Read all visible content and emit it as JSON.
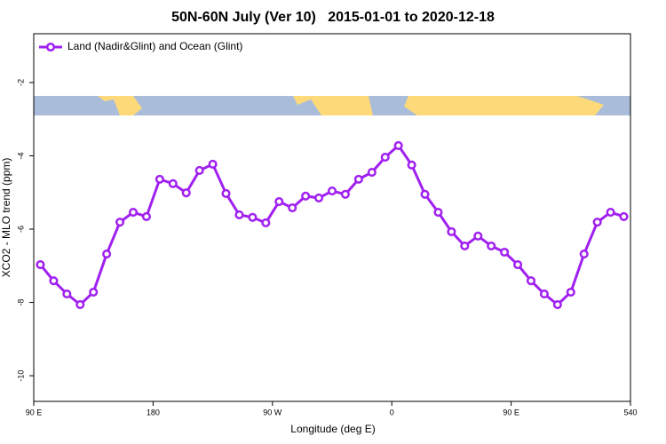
{
  "chart_data": {
    "type": "line",
    "title": "50N-60N July (Ver 10)   2015-01-01 to 2020-12-18",
    "x_label": "Longitude (deg E)",
    "y_label": "XCO2 - MLO trend (ppm)",
    "x": [
      95,
      105,
      115,
      125,
      135,
      145,
      155,
      165,
      175,
      185,
      195,
      205,
      215,
      225,
      235,
      245,
      255,
      265,
      275,
      285,
      295,
      305,
      315,
      325,
      335,
      345,
      355,
      365,
      375,
      385,
      395,
      405,
      415,
      425,
      435,
      445,
      455,
      465,
      475,
      485,
      495,
      505,
      515,
      525,
      535
    ],
    "series": [
      {
        "name": "Land (Nadir&Glint) and Ocean (Glint)",
        "color": "#a020f0",
        "values": [
          -6.97,
          -7.41,
          -7.77,
          -8.06,
          -7.72,
          -6.68,
          -5.81,
          -5.54,
          -5.66,
          -4.64,
          -4.76,
          -5.01,
          -4.4,
          -4.23,
          -5.03,
          -5.61,
          -5.68,
          -5.83,
          -5.25,
          -5.42,
          -5.1,
          -5.15,
          -4.96,
          -5.05,
          -4.64,
          -4.45,
          -4.04,
          -3.72,
          -4.25,
          -5.05,
          -5.54,
          -6.07,
          -6.46,
          -6.19,
          -6.46,
          -6.63,
          -6.97,
          -7.41,
          -7.77,
          -8.06,
          -7.72,
          -6.68,
          -5.81,
          -5.54,
          -5.66
        ]
      }
    ],
    "xlim": [
      90,
      540
    ],
    "xticks": [
      {
        "value": 90,
        "label": "90 E"
      },
      180,
      {
        "value": 270,
        "label": "90 W"
      },
      {
        "value": 360,
        "label": "0"
      },
      {
        "value": 450,
        "label": "90 E"
      },
      540
    ],
    "ylim": [
      -10.7,
      -0.67
    ],
    "yticks": [
      -10,
      -8,
      -6,
      -4,
      -2
    ],
    "legend": "top-left"
  }
}
